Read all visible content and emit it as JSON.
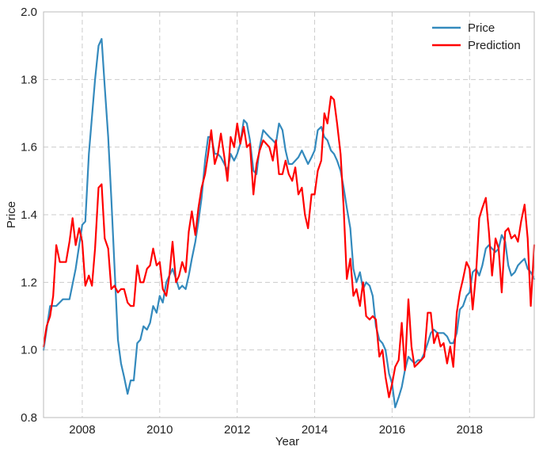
{
  "chart_data": {
    "type": "line",
    "title": "",
    "xlabel": "Year",
    "ylabel": "Price",
    "xlim": [
      2007.0,
      2019.67
    ],
    "ylim": [
      0.8,
      2.0
    ],
    "grid": true,
    "legend_position": "top-right",
    "xticks": [
      2008,
      2010,
      2012,
      2014,
      2016,
      2018
    ],
    "xtick_labels": [
      "2008",
      "2010",
      "2012",
      "2014",
      "2016",
      "2018"
    ],
    "yticks": [
      0.8,
      1.0,
      1.2,
      1.4,
      1.6,
      1.8,
      2.0
    ],
    "ytick_labels": [
      "0.8",
      "1.0",
      "1.2",
      "1.4",
      "1.6",
      "1.8",
      "2.0"
    ],
    "series": [
      {
        "name": "Price",
        "color": "#348abd",
        "points": [
          [
            2007.0,
            1.0
          ],
          [
            2007.17,
            1.13
          ],
          [
            2007.33,
            1.13
          ],
          [
            2007.5,
            1.15
          ],
          [
            2007.67,
            1.15
          ],
          [
            2007.83,
            1.24
          ],
          [
            2008.0,
            1.37
          ],
          [
            2008.08,
            1.38
          ],
          [
            2008.17,
            1.58
          ],
          [
            2008.33,
            1.8
          ],
          [
            2008.42,
            1.9
          ],
          [
            2008.5,
            1.92
          ],
          [
            2008.58,
            1.78
          ],
          [
            2008.67,
            1.63
          ],
          [
            2008.75,
            1.45
          ],
          [
            2008.83,
            1.25
          ],
          [
            2008.92,
            1.03
          ],
          [
            2009.0,
            0.96
          ],
          [
            2009.08,
            0.92
          ],
          [
            2009.17,
            0.87
          ],
          [
            2009.25,
            0.91
          ],
          [
            2009.33,
            0.91
          ],
          [
            2009.42,
            1.02
          ],
          [
            2009.5,
            1.03
          ],
          [
            2009.58,
            1.07
          ],
          [
            2009.67,
            1.06
          ],
          [
            2009.75,
            1.08
          ],
          [
            2009.83,
            1.13
          ],
          [
            2009.92,
            1.11
          ],
          [
            2010.0,
            1.16
          ],
          [
            2010.08,
            1.14
          ],
          [
            2010.17,
            1.2
          ],
          [
            2010.25,
            1.22
          ],
          [
            2010.33,
            1.24
          ],
          [
            2010.42,
            1.21
          ],
          [
            2010.5,
            1.18
          ],
          [
            2010.58,
            1.19
          ],
          [
            2010.67,
            1.18
          ],
          [
            2010.75,
            1.22
          ],
          [
            2010.83,
            1.27
          ],
          [
            2010.92,
            1.32
          ],
          [
            2011.0,
            1.38
          ],
          [
            2011.08,
            1.45
          ],
          [
            2011.17,
            1.56
          ],
          [
            2011.25,
            1.63
          ],
          [
            2011.33,
            1.63
          ],
          [
            2011.42,
            1.58
          ],
          [
            2011.5,
            1.58
          ],
          [
            2011.58,
            1.57
          ],
          [
            2011.67,
            1.55
          ],
          [
            2011.75,
            1.53
          ],
          [
            2011.83,
            1.58
          ],
          [
            2011.92,
            1.56
          ],
          [
            2012.0,
            1.58
          ],
          [
            2012.08,
            1.61
          ],
          [
            2012.17,
            1.68
          ],
          [
            2012.25,
            1.67
          ],
          [
            2012.33,
            1.62
          ],
          [
            2012.42,
            1.53
          ],
          [
            2012.5,
            1.52
          ],
          [
            2012.58,
            1.6
          ],
          [
            2012.67,
            1.65
          ],
          [
            2012.75,
            1.64
          ],
          [
            2012.83,
            1.63
          ],
          [
            2012.92,
            1.62
          ],
          [
            2013.0,
            1.61
          ],
          [
            2013.08,
            1.67
          ],
          [
            2013.17,
            1.65
          ],
          [
            2013.25,
            1.59
          ],
          [
            2013.33,
            1.55
          ],
          [
            2013.42,
            1.55
          ],
          [
            2013.5,
            1.56
          ],
          [
            2013.58,
            1.57
          ],
          [
            2013.67,
            1.59
          ],
          [
            2013.75,
            1.57
          ],
          [
            2013.83,
            1.55
          ],
          [
            2013.92,
            1.57
          ],
          [
            2014.0,
            1.59
          ],
          [
            2014.08,
            1.65
          ],
          [
            2014.17,
            1.66
          ],
          [
            2014.25,
            1.63
          ],
          [
            2014.33,
            1.62
          ],
          [
            2014.42,
            1.59
          ],
          [
            2014.5,
            1.58
          ],
          [
            2014.58,
            1.56
          ],
          [
            2014.67,
            1.53
          ],
          [
            2014.75,
            1.48
          ],
          [
            2014.83,
            1.42
          ],
          [
            2014.92,
            1.36
          ],
          [
            2015.0,
            1.24
          ],
          [
            2015.08,
            1.2
          ],
          [
            2015.17,
            1.23
          ],
          [
            2015.25,
            1.18
          ],
          [
            2015.33,
            1.2
          ],
          [
            2015.42,
            1.19
          ],
          [
            2015.5,
            1.16
          ],
          [
            2015.58,
            1.07
          ],
          [
            2015.67,
            1.03
          ],
          [
            2015.75,
            1.02
          ],
          [
            2015.83,
            1.0
          ],
          [
            2015.92,
            0.93
          ],
          [
            2016.0,
            0.9
          ],
          [
            2016.08,
            0.83
          ],
          [
            2016.17,
            0.86
          ],
          [
            2016.25,
            0.89
          ],
          [
            2016.33,
            0.94
          ],
          [
            2016.42,
            0.98
          ],
          [
            2016.5,
            0.97
          ],
          [
            2016.58,
            0.96
          ],
          [
            2016.67,
            0.97
          ],
          [
            2016.75,
            0.97
          ],
          [
            2016.83,
            0.99
          ],
          [
            2016.92,
            1.02
          ],
          [
            2017.0,
            1.05
          ],
          [
            2017.08,
            1.06
          ],
          [
            2017.17,
            1.05
          ],
          [
            2017.25,
            1.05
          ],
          [
            2017.33,
            1.05
          ],
          [
            2017.42,
            1.04
          ],
          [
            2017.5,
            1.02
          ],
          [
            2017.58,
            1.02
          ],
          [
            2017.67,
            1.05
          ],
          [
            2017.75,
            1.12
          ],
          [
            2017.83,
            1.13
          ],
          [
            2017.92,
            1.16
          ],
          [
            2018.0,
            1.17
          ],
          [
            2018.08,
            1.23
          ],
          [
            2018.17,
            1.24
          ],
          [
            2018.25,
            1.22
          ],
          [
            2018.33,
            1.25
          ],
          [
            2018.42,
            1.3
          ],
          [
            2018.5,
            1.31
          ],
          [
            2018.58,
            1.3
          ],
          [
            2018.67,
            1.29
          ],
          [
            2018.75,
            1.3
          ],
          [
            2018.83,
            1.34
          ],
          [
            2018.92,
            1.32
          ],
          [
            2019.0,
            1.25
          ],
          [
            2019.08,
            1.22
          ],
          [
            2019.17,
            1.23
          ],
          [
            2019.25,
            1.25
          ],
          [
            2019.33,
            1.26
          ],
          [
            2019.42,
            1.27
          ],
          [
            2019.5,
            1.24
          ],
          [
            2019.58,
            1.23
          ],
          [
            2019.67,
            1.21
          ]
        ]
      },
      {
        "name": "Prediction",
        "color": "#ff0000",
        "points": [
          [
            2007.0,
            1.01
          ],
          [
            2007.08,
            1.07
          ],
          [
            2007.17,
            1.1
          ],
          [
            2007.25,
            1.16
          ],
          [
            2007.33,
            1.31
          ],
          [
            2007.42,
            1.26
          ],
          [
            2007.58,
            1.26
          ],
          [
            2007.67,
            1.32
          ],
          [
            2007.75,
            1.39
          ],
          [
            2007.83,
            1.31
          ],
          [
            2007.92,
            1.36
          ],
          [
            2008.0,
            1.32
          ],
          [
            2008.08,
            1.19
          ],
          [
            2008.17,
            1.22
          ],
          [
            2008.25,
            1.19
          ],
          [
            2008.33,
            1.3
          ],
          [
            2008.42,
            1.48
          ],
          [
            2008.5,
            1.49
          ],
          [
            2008.58,
            1.33
          ],
          [
            2008.67,
            1.3
          ],
          [
            2008.75,
            1.18
          ],
          [
            2008.83,
            1.19
          ],
          [
            2008.92,
            1.17
          ],
          [
            2009.0,
            1.18
          ],
          [
            2009.08,
            1.18
          ],
          [
            2009.17,
            1.14
          ],
          [
            2009.25,
            1.13
          ],
          [
            2009.33,
            1.13
          ],
          [
            2009.42,
            1.25
          ],
          [
            2009.5,
            1.2
          ],
          [
            2009.58,
            1.2
          ],
          [
            2009.67,
            1.24
          ],
          [
            2009.75,
            1.25
          ],
          [
            2009.83,
            1.3
          ],
          [
            2009.92,
            1.25
          ],
          [
            2010.0,
            1.26
          ],
          [
            2010.08,
            1.18
          ],
          [
            2010.17,
            1.16
          ],
          [
            2010.25,
            1.22
          ],
          [
            2010.33,
            1.32
          ],
          [
            2010.42,
            1.2
          ],
          [
            2010.5,
            1.22
          ],
          [
            2010.58,
            1.26
          ],
          [
            2010.67,
            1.23
          ],
          [
            2010.75,
            1.35
          ],
          [
            2010.83,
            1.41
          ],
          [
            2010.92,
            1.34
          ],
          [
            2011.0,
            1.42
          ],
          [
            2011.08,
            1.48
          ],
          [
            2011.17,
            1.52
          ],
          [
            2011.25,
            1.58
          ],
          [
            2011.33,
            1.65
          ],
          [
            2011.42,
            1.55
          ],
          [
            2011.5,
            1.58
          ],
          [
            2011.58,
            1.64
          ],
          [
            2011.67,
            1.57
          ],
          [
            2011.75,
            1.5
          ],
          [
            2011.83,
            1.63
          ],
          [
            2011.92,
            1.6
          ],
          [
            2012.0,
            1.67
          ],
          [
            2012.08,
            1.61
          ],
          [
            2012.17,
            1.66
          ],
          [
            2012.25,
            1.6
          ],
          [
            2012.33,
            1.61
          ],
          [
            2012.42,
            1.46
          ],
          [
            2012.5,
            1.55
          ],
          [
            2012.58,
            1.59
          ],
          [
            2012.67,
            1.62
          ],
          [
            2012.75,
            1.61
          ],
          [
            2012.83,
            1.6
          ],
          [
            2012.92,
            1.56
          ],
          [
            2013.0,
            1.62
          ],
          [
            2013.08,
            1.52
          ],
          [
            2013.17,
            1.52
          ],
          [
            2013.25,
            1.56
          ],
          [
            2013.33,
            1.52
          ],
          [
            2013.42,
            1.5
          ],
          [
            2013.5,
            1.54
          ],
          [
            2013.58,
            1.46
          ],
          [
            2013.67,
            1.48
          ],
          [
            2013.75,
            1.4
          ],
          [
            2013.83,
            1.36
          ],
          [
            2013.92,
            1.46
          ],
          [
            2014.0,
            1.46
          ],
          [
            2014.08,
            1.53
          ],
          [
            2014.17,
            1.56
          ],
          [
            2014.25,
            1.7
          ],
          [
            2014.33,
            1.67
          ],
          [
            2014.42,
            1.75
          ],
          [
            2014.5,
            1.74
          ],
          [
            2014.58,
            1.67
          ],
          [
            2014.67,
            1.58
          ],
          [
            2014.75,
            1.42
          ],
          [
            2014.83,
            1.21
          ],
          [
            2014.92,
            1.27
          ],
          [
            2015.0,
            1.16
          ],
          [
            2015.08,
            1.18
          ],
          [
            2015.17,
            1.13
          ],
          [
            2015.25,
            1.2
          ],
          [
            2015.33,
            1.1
          ],
          [
            2015.42,
            1.09
          ],
          [
            2015.5,
            1.1
          ],
          [
            2015.58,
            1.09
          ],
          [
            2015.67,
            0.98
          ],
          [
            2015.75,
            1.0
          ],
          [
            2015.83,
            0.92
          ],
          [
            2015.92,
            0.86
          ],
          [
            2016.0,
            0.9
          ],
          [
            2016.08,
            0.95
          ],
          [
            2016.17,
            0.97
          ],
          [
            2016.25,
            1.08
          ],
          [
            2016.33,
            0.94
          ],
          [
            2016.42,
            1.15
          ],
          [
            2016.5,
            1.01
          ],
          [
            2016.58,
            0.95
          ],
          [
            2016.67,
            0.96
          ],
          [
            2016.75,
            0.97
          ],
          [
            2016.83,
            0.98
          ],
          [
            2016.92,
            1.11
          ],
          [
            2017.0,
            1.11
          ],
          [
            2017.08,
            1.02
          ],
          [
            2017.17,
            1.05
          ],
          [
            2017.25,
            1.01
          ],
          [
            2017.33,
            1.02
          ],
          [
            2017.42,
            0.96
          ],
          [
            2017.5,
            1.01
          ],
          [
            2017.58,
            0.95
          ],
          [
            2017.67,
            1.11
          ],
          [
            2017.75,
            1.17
          ],
          [
            2017.83,
            1.21
          ],
          [
            2017.92,
            1.26
          ],
          [
            2018.0,
            1.24
          ],
          [
            2018.08,
            1.12
          ],
          [
            2018.17,
            1.23
          ],
          [
            2018.25,
            1.39
          ],
          [
            2018.33,
            1.42
          ],
          [
            2018.42,
            1.45
          ],
          [
            2018.5,
            1.35
          ],
          [
            2018.58,
            1.22
          ],
          [
            2018.67,
            1.33
          ],
          [
            2018.75,
            1.3
          ],
          [
            2018.83,
            1.17
          ],
          [
            2018.92,
            1.35
          ],
          [
            2019.0,
            1.36
          ],
          [
            2019.08,
            1.33
          ],
          [
            2019.17,
            1.34
          ],
          [
            2019.25,
            1.32
          ],
          [
            2019.33,
            1.38
          ],
          [
            2019.42,
            1.43
          ],
          [
            2019.5,
            1.33
          ],
          [
            2019.58,
            1.13
          ],
          [
            2019.67,
            1.31
          ]
        ]
      }
    ]
  }
}
